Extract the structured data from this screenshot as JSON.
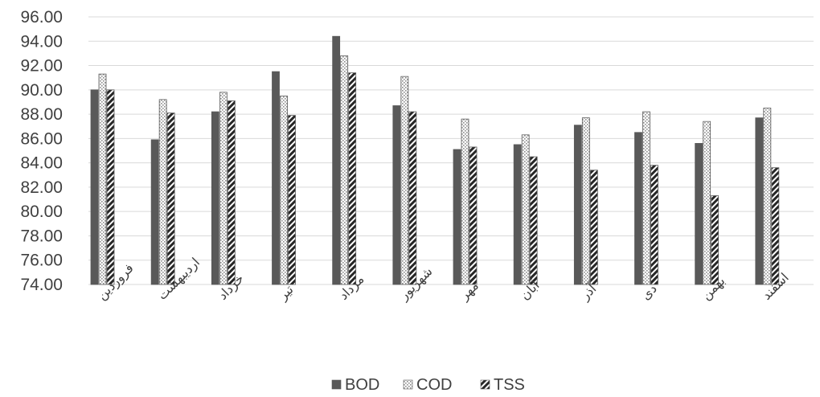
{
  "chart_data": {
    "type": "bar",
    "title": "",
    "xlabel": "",
    "ylabel": "",
    "ylim": [
      74,
      96
    ],
    "ytick_step": 2,
    "ytick_labels": [
      "74.00",
      "76.00",
      "78.00",
      "80.00",
      "82.00",
      "84.00",
      "86.00",
      "88.00",
      "90.00",
      "92.00",
      "94.00",
      "96.00"
    ],
    "grid": true,
    "legend_position": "bottom",
    "categories": [
      "فروردین",
      "اردیبهشت",
      "خرداد",
      "تیر",
      "مرداد",
      "شهریور",
      "مهر",
      "آبان",
      "آذر",
      "دی",
      "بهمن",
      "اسفند"
    ],
    "series": [
      {
        "name": "BOD",
        "pattern": "solid",
        "color": "#595959",
        "values": [
          90.0,
          85.9,
          88.2,
          91.5,
          94.4,
          88.7,
          85.1,
          85.5,
          87.1,
          86.5,
          85.6,
          87.7
        ]
      },
      {
        "name": "COD",
        "pattern": "dots",
        "color": "#bfbfbf",
        "values": [
          91.3,
          89.2,
          89.8,
          89.5,
          92.8,
          91.1,
          87.6,
          86.3,
          87.7,
          88.2,
          87.4,
          88.5
        ]
      },
      {
        "name": "TSS",
        "pattern": "diagonal",
        "color": "#262626",
        "values": [
          90.0,
          88.1,
          89.1,
          87.9,
          91.4,
          88.2,
          85.3,
          84.5,
          83.4,
          83.8,
          81.3,
          83.6
        ]
      }
    ]
  }
}
